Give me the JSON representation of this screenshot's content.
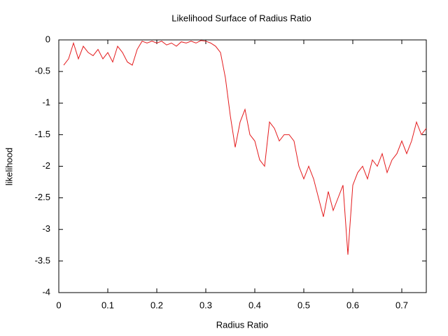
{
  "chart_data": {
    "type": "line",
    "title": "Likelihood Surface of Radius Ratio",
    "x_label": "Radius Ratio",
    "y_label": "likelihood",
    "x": [
      0.01,
      0.02,
      0.03,
      0.04,
      0.05,
      0.06,
      0.07,
      0.08,
      0.09,
      0.1,
      0.11,
      0.12,
      0.13,
      0.14,
      0.15,
      0.16,
      0.17,
      0.18,
      0.19,
      0.2,
      0.21,
      0.22,
      0.23,
      0.24,
      0.25,
      0.26,
      0.27,
      0.28,
      0.29,
      0.3,
      0.31,
      0.32,
      0.33,
      0.34,
      0.35,
      0.36,
      0.37,
      0.38,
      0.39,
      0.4,
      0.41,
      0.42,
      0.43,
      0.44,
      0.45,
      0.46,
      0.47,
      0.48,
      0.49,
      0.5,
      0.51,
      0.52,
      0.53,
      0.54,
      0.55,
      0.56,
      0.57,
      0.58,
      0.59,
      0.6,
      0.61,
      0.62,
      0.63,
      0.64,
      0.65,
      0.66,
      0.67,
      0.68,
      0.69,
      0.7,
      0.71,
      0.72,
      0.73,
      0.74,
      0.75
    ],
    "series": [
      {
        "name": "likelihood",
        "color": "#e41a1c",
        "values": [
          -0.4,
          -0.3,
          -0.05,
          -0.3,
          -0.1,
          -0.2,
          -0.25,
          -0.15,
          -0.3,
          -0.2,
          -0.35,
          -0.1,
          -0.2,
          -0.35,
          -0.4,
          -0.15,
          -0.02,
          -0.05,
          -0.02,
          -0.05,
          -0.02,
          -0.08,
          -0.05,
          -0.1,
          -0.03,
          -0.05,
          -0.02,
          -0.05,
          -0.01,
          -0.02,
          -0.05,
          -0.1,
          -0.2,
          -0.6,
          -1.2,
          -1.7,
          -1.3,
          -1.1,
          -1.5,
          -1.6,
          -1.9,
          -2.0,
          -1.3,
          -1.4,
          -1.6,
          -1.5,
          -1.5,
          -1.6,
          -2.0,
          -2.2,
          -2.0,
          -2.2,
          -2.5,
          -2.8,
          -2.4,
          -2.7,
          -2.5,
          -2.3,
          -3.4,
          -2.3,
          -2.1,
          -2.0,
          -2.2,
          -1.9,
          -2.0,
          -1.8,
          -2.1,
          -1.9,
          -1.8,
          -1.6,
          -1.8,
          -1.6,
          -1.3,
          -1.5,
          -1.4
        ]
      }
    ],
    "xlim": [
      0,
      0.75
    ],
    "ylim": [
      -4,
      0
    ],
    "xticks": [
      0,
      0.1,
      0.2,
      0.3,
      0.4,
      0.5,
      0.6,
      0.7
    ],
    "yticks": [
      -4,
      -3.5,
      -3,
      -2.5,
      -2,
      -1.5,
      -1,
      -0.5,
      0
    ],
    "grid": false
  }
}
